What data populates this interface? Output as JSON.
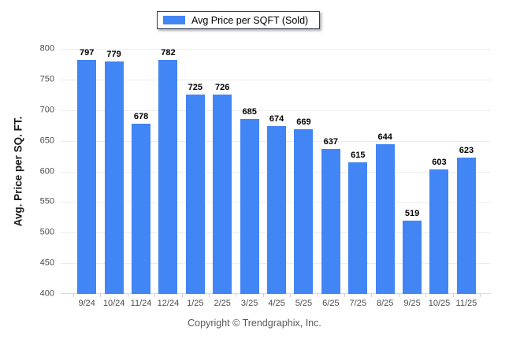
{
  "legend": {
    "label": "Avg Price per SQFT (Sold)",
    "swatch_color": "#4285F4"
  },
  "footer": {
    "text": "Copyright © Trendgraphix, Inc."
  },
  "chart_data": {
    "type": "bar",
    "title": "",
    "xlabel": "",
    "ylabel": "Avg. Price per SQ. FT.",
    "categories": [
      "9/24",
      "10/24",
      "11/24",
      "12/24",
      "1/25",
      "2/25",
      "3/25",
      "4/25",
      "5/25",
      "6/25",
      "7/25",
      "8/25",
      "9/25",
      "10/25",
      "11/25"
    ],
    "series": [
      {
        "name": "Avg Price per SQFT (Sold)",
        "values": [
          797,
          779,
          678,
          782,
          725,
          726,
          685,
          674,
          669,
          637,
          615,
          644,
          519,
          603,
          623
        ]
      }
    ],
    "ylim": [
      400,
      800
    ],
    "ytick_step": 50,
    "grid": "horizontal",
    "legend_position": "top-center",
    "bar_color": "#4285F4",
    "gridline_color": "#ECECEC",
    "value_labels": true
  }
}
